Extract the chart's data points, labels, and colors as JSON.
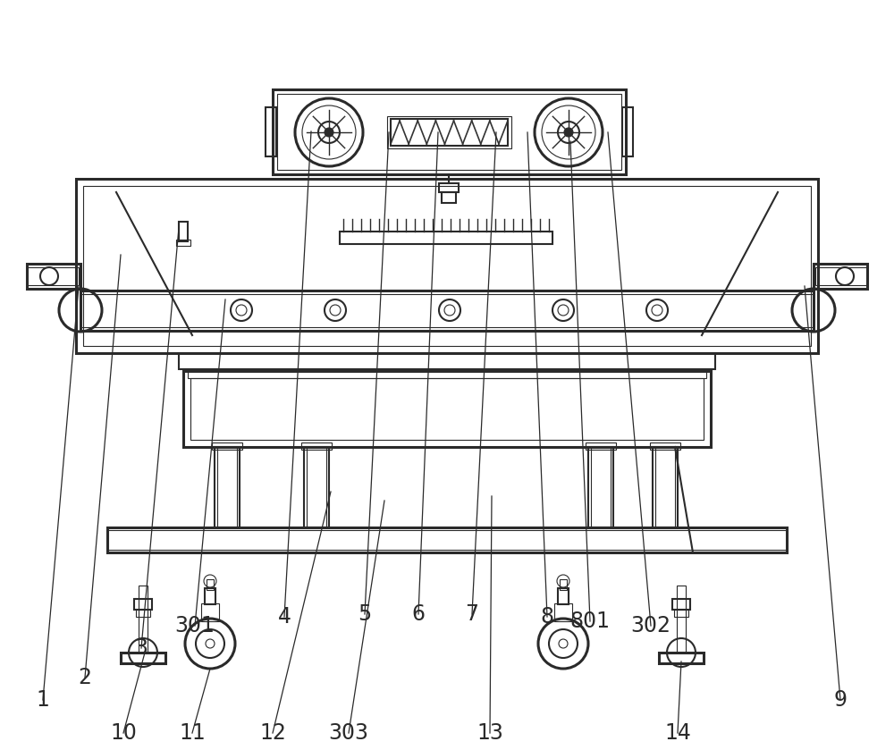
{
  "bg_color": "#ffffff",
  "lc": "#2a2a2a",
  "lc_light": "#555555",
  "figsize": [
    10.0,
    8.39
  ],
  "dpi": 100,
  "labels_top": [
    [
      "1",
      48,
      783
    ],
    [
      "2",
      95,
      758
    ],
    [
      "3",
      158,
      725
    ],
    [
      "301",
      218,
      700
    ],
    [
      "4",
      318,
      690
    ],
    [
      "5",
      408,
      687
    ],
    [
      "6",
      468,
      687
    ],
    [
      "7",
      528,
      687
    ],
    [
      "8",
      612,
      690
    ],
    [
      "801",
      660,
      695
    ],
    [
      "302",
      728,
      700
    ],
    [
      "9",
      940,
      783
    ]
  ],
  "labels_bot": [
    [
      "10",
      138,
      820
    ],
    [
      "11",
      215,
      820
    ],
    [
      "12",
      305,
      820
    ],
    [
      "303",
      390,
      820
    ],
    [
      "13",
      548,
      820
    ],
    [
      "14",
      758,
      820
    ]
  ]
}
